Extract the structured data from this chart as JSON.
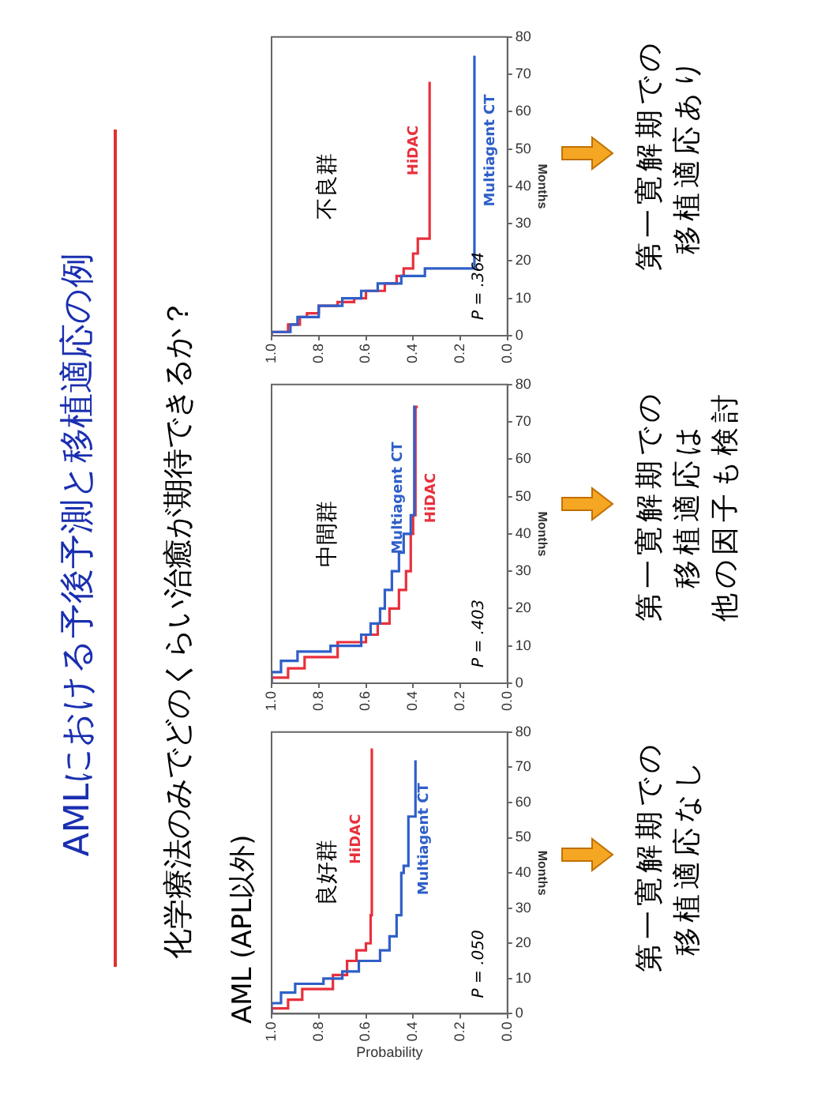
{
  "chart_data": [
    {
      "type": "step",
      "title": "AML (APL以外)",
      "xlabel": "Probability",
      "ylabel": "Months",
      "annotations": [
        "良好群",
        "P = .050",
        "第一寛解期での",
        "移植適応なし"
      ],
      "ylim": [
        0,
        80
      ],
      "yticks": [
        0,
        10,
        20,
        30,
        40,
        50,
        60,
        70,
        80
      ],
      "xlim": [
        1,
        0
      ],
      "xticks": [
        {
          "value": 0,
          "label": "0.0"
        },
        {
          "value": 0.2,
          "label": "0.2"
        },
        {
          "value": 0.4,
          "label": "0.4"
        },
        {
          "value": 0.6,
          "label": "0.6"
        },
        {
          "value": 0.8,
          "label": "0.8"
        },
        {
          "value": 1,
          "label": "1.0"
        }
      ],
      "legend": false,
      "series": [
        {
          "name": "HiDAC",
          "color": "#e8303c",
          "values": [
            0,
            1.5,
            4,
            7,
            11,
            15,
            18,
            20,
            28,
            75
          ],
          "x": [
            1,
            0.93,
            0.87,
            0.74,
            0.68,
            0.64,
            0.6,
            0.58,
            0.575,
            0.57
          ]
        },
        {
          "name": "Multiagent CT",
          "color": "#2f5fc8",
          "values": [
            0,
            3,
            6,
            8.5,
            10,
            12,
            15,
            18,
            22,
            28,
            40,
            42,
            56,
            72
          ],
          "x": [
            1,
            0.96,
            0.9,
            0.78,
            0.7,
            0.63,
            0.54,
            0.5,
            0.47,
            0.45,
            0.44,
            0.42,
            0.39,
            0.39
          ]
        }
      ]
    },
    {
      "type": "step",
      "title": "AMLにおける予後予測と移植適応の例",
      "subtitle": "化学療法のみでどのくらい治癒が期待できるか？",
      "ylabel": "Months",
      "annotations": [
        "中間群",
        "P = .403",
        "第一寛解期での",
        "移植適応は",
        "他の因子も検討"
      ],
      "ylim": [
        0,
        80
      ],
      "yticks": [
        0,
        10,
        20,
        30,
        40,
        50,
        60,
        70,
        80
      ],
      "xlim": [
        1,
        0
      ],
      "xticks": [
        {
          "value": 0,
          "label": "0.0"
        },
        {
          "value": 0.2,
          "label": "0.2"
        },
        {
          "value": 0.4,
          "label": "0.4"
        },
        {
          "value": 0.6,
          "label": "0.6"
        },
        {
          "value": 0.8,
          "label": "0.8"
        },
        {
          "value": 1,
          "label": "1.0"
        }
      ],
      "legend": false,
      "series": [
        {
          "name": "HiDAC",
          "color": "#e8303c",
          "values": [
            0,
            1.5,
            4,
            7,
            11,
            13,
            16,
            20,
            25,
            30,
            40,
            45,
            74
          ],
          "x": [
            1,
            0.93,
            0.86,
            0.72,
            0.6,
            0.55,
            0.5,
            0.46,
            0.43,
            0.41,
            0.4,
            0.39,
            0.38
          ]
        },
        {
          "name": "Multiagent CT",
          "color": "#2f5fc8",
          "values": [
            0,
            3,
            6,
            8.5,
            10,
            13,
            16,
            20,
            25,
            30,
            35,
            40,
            45,
            74
          ],
          "x": [
            1,
            0.96,
            0.89,
            0.75,
            0.62,
            0.58,
            0.54,
            0.52,
            0.49,
            0.46,
            0.44,
            0.41,
            0.395,
            0.39
          ]
        }
      ]
    },
    {
      "type": "step",
      "ylabel": "Months",
      "annotations": [
        "不良群",
        "P = .364",
        "第一寛解期での",
        "移植適応あり"
      ],
      "ylim": [
        0,
        80
      ],
      "yticks": [
        0,
        10,
        20,
        30,
        40,
        50,
        60,
        70,
        80
      ],
      "xlim": [
        1,
        0
      ],
      "xticks": [
        {
          "value": 0,
          "label": "0.0"
        },
        {
          "value": 0.2,
          "label": "0.2"
        },
        {
          "value": 0.4,
          "label": "0.4"
        },
        {
          "value": 0.6,
          "label": "0.6"
        },
        {
          "value": 0.8,
          "label": "0.8"
        },
        {
          "value": 1,
          "label": "1.0"
        }
      ],
      "legend": false,
      "series": [
        {
          "name": "HiDAC",
          "color": "#e8303c",
          "values": [
            0,
            1,
            3,
            5,
            6,
            8,
            9,
            10,
            12,
            14,
            16,
            18,
            22,
            26,
            68
          ],
          "x": [
            1,
            0.93,
            0.88,
            0.85,
            0.8,
            0.72,
            0.65,
            0.6,
            0.52,
            0.47,
            0.44,
            0.4,
            0.38,
            0.33,
            0.33
          ]
        },
        {
          "name": "Multiagent CT",
          "color": "#2f5fc8",
          "values": [
            0,
            1,
            3,
            5,
            8,
            10,
            12,
            14,
            16,
            18,
            75
          ],
          "x": [
            1,
            0.92,
            0.89,
            0.8,
            0.7,
            0.62,
            0.55,
            0.45,
            0.35,
            0.14,
            0.14
          ]
        }
      ]
    }
  ]
}
